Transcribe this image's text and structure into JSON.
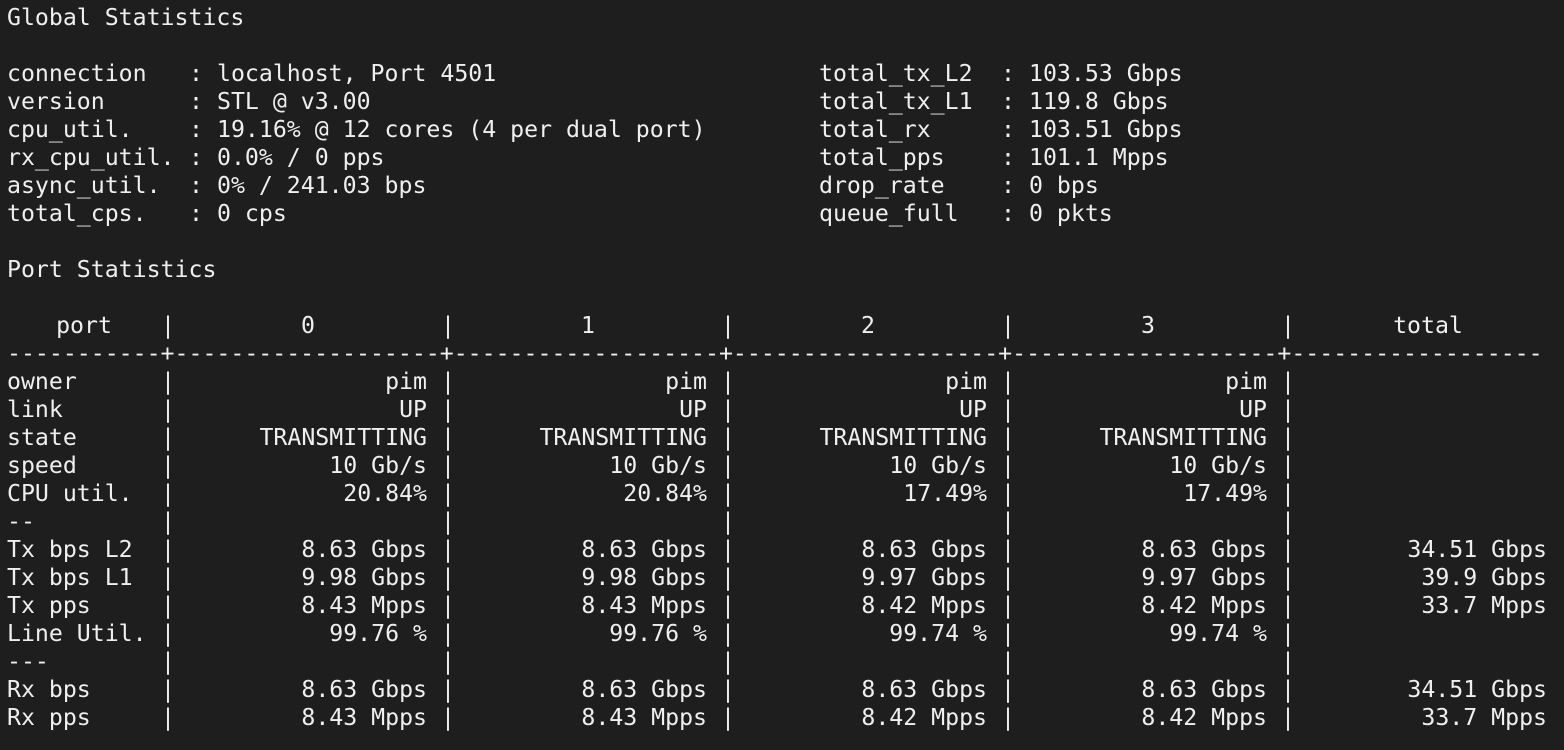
{
  "global": {
    "title": "Global Statistics",
    "left": [
      {
        "key": "connection",
        "value": "localhost, Port 4501"
      },
      {
        "key": "version",
        "value": "STL @ v3.00"
      },
      {
        "key": "cpu_util.",
        "value": "19.16% @ 12 cores (4 per dual port)"
      },
      {
        "key": "rx_cpu_util.",
        "value": "0.0% / 0 pps"
      },
      {
        "key": "async_util.",
        "value": "0% / 241.03 bps"
      },
      {
        "key": "total_cps.",
        "value": "0 cps"
      }
    ],
    "right": [
      {
        "key": "total_tx_L2",
        "value": "103.53 Gbps"
      },
      {
        "key": "total_tx_L1",
        "value": "119.8 Gbps"
      },
      {
        "key": "total_rx",
        "value": "103.51 Gbps"
      },
      {
        "key": "total_pps",
        "value": "101.1 Mpps"
      },
      {
        "key": "drop_rate",
        "value": "0 bps"
      },
      {
        "key": "queue_full",
        "value": "0 pkts"
      }
    ]
  },
  "ports": {
    "title": "Port Statistics",
    "headers": [
      "port",
      "0",
      "1",
      "2",
      "3",
      "total"
    ],
    "rows": [
      {
        "label": "owner",
        "values": [
          "pim",
          "pim",
          "pim",
          "pim"
        ],
        "total": ""
      },
      {
        "label": "link",
        "values": [
          "UP",
          "UP",
          "UP",
          "UP"
        ],
        "total": ""
      },
      {
        "label": "state",
        "values": [
          "TRANSMITTING",
          "TRANSMITTING",
          "TRANSMITTING",
          "TRANSMITTING"
        ],
        "total": ""
      },
      {
        "label": "speed",
        "values": [
          "10 Gb/s",
          "10 Gb/s",
          "10 Gb/s",
          "10 Gb/s"
        ],
        "total": ""
      },
      {
        "label": "CPU util.",
        "values": [
          "20.84%",
          "20.84%",
          "17.49%",
          "17.49%"
        ],
        "total": ""
      },
      {
        "label": "--",
        "values": [
          "",
          "",
          "",
          ""
        ],
        "total": ""
      },
      {
        "label": "Tx bps L2",
        "values": [
          "8.63 Gbps",
          "8.63 Gbps",
          "8.63 Gbps",
          "8.63 Gbps"
        ],
        "total": "34.51 Gbps"
      },
      {
        "label": "Tx bps L1",
        "values": [
          "9.98 Gbps",
          "9.98 Gbps",
          "9.97 Gbps",
          "9.97 Gbps"
        ],
        "total": "39.9 Gbps"
      },
      {
        "label": "Tx pps",
        "values": [
          "8.43 Mpps",
          "8.43 Mpps",
          "8.42 Mpps",
          "8.42 Mpps"
        ],
        "total": "33.7 Mpps"
      },
      {
        "label": "Line Util.",
        "values": [
          "99.76 %",
          "99.76 %",
          "99.74 %",
          "99.74 %"
        ],
        "total": ""
      },
      {
        "label": "---",
        "values": [
          "",
          "",
          "",
          ""
        ],
        "total": ""
      },
      {
        "label": "Rx bps",
        "values": [
          "8.63 Gbps",
          "8.63 Gbps",
          "8.63 Gbps",
          "8.63 Gbps"
        ],
        "total": "34.51 Gbps"
      },
      {
        "label": "Rx pps",
        "values": [
          "8.43 Mpps",
          "8.43 Mpps",
          "8.42 Mpps",
          "8.42 Mpps"
        ],
        "total": "33.7 Mpps"
      }
    ]
  },
  "colors": {
    "background": "#1e1e1e",
    "text": "#efefef"
  }
}
